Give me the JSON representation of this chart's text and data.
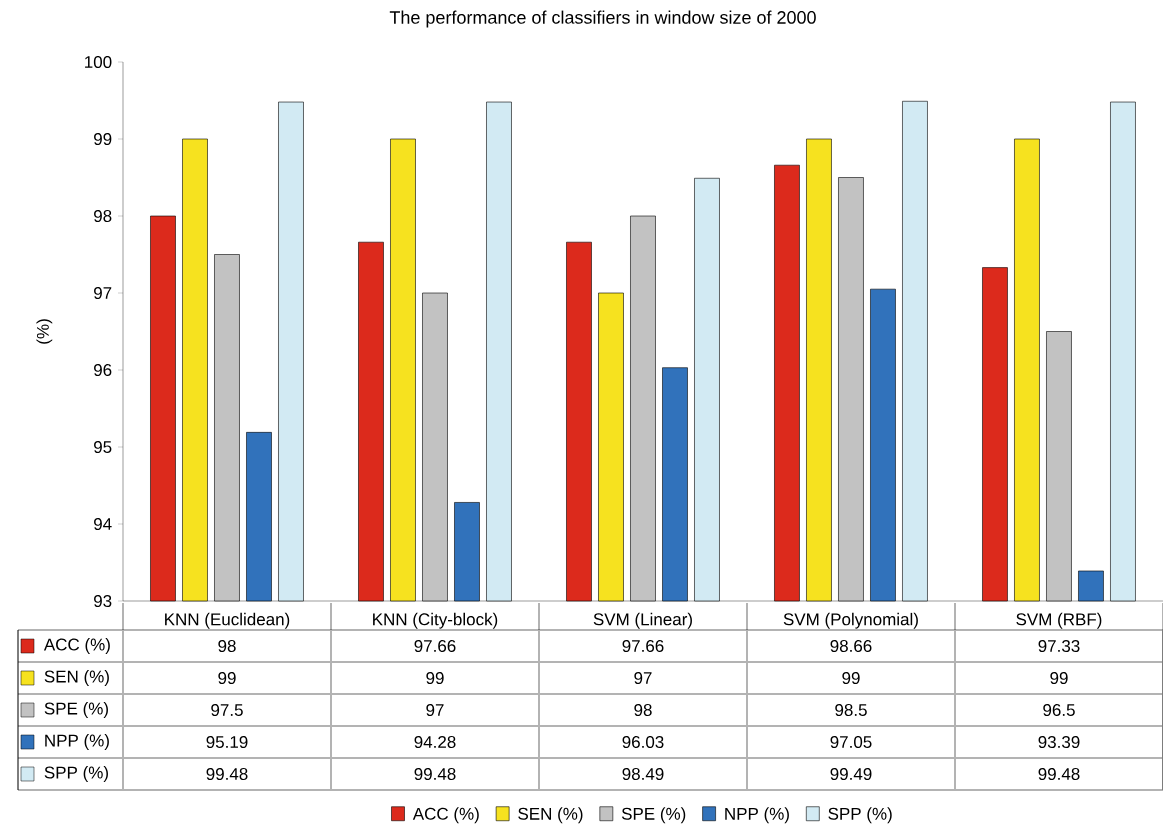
{
  "chart_data": {
    "type": "bar",
    "title": "The performance of classifiers in window size of 2000",
    "ylabel": "(%)",
    "categories": [
      "KNN (Euclidean)",
      "KNN (City-block)",
      "SVM (Linear)",
      "SVM (Polynomial)",
      "SVM (RBF)"
    ],
    "series": [
      {
        "name": "ACC (%)",
        "color": "#dc2a1c",
        "values": [
          98,
          97.66,
          97.66,
          98.66,
          97.33
        ]
      },
      {
        "name": "SEN (%)",
        "color": "#f6e21f",
        "values": [
          99,
          99,
          97,
          99,
          99
        ]
      },
      {
        "name": "SPE (%)",
        "color": "#c2c2c2",
        "values": [
          97.5,
          97,
          98,
          98.5,
          96.5
        ]
      },
      {
        "name": "NPP (%)",
        "color": "#3172bb",
        "values": [
          95.19,
          94.28,
          96.03,
          97.05,
          93.39
        ]
      },
      {
        "name": "SPP (%)",
        "color": "#d2eaf3",
        "values": [
          99.48,
          99.48,
          98.49,
          99.49,
          99.48
        ]
      }
    ],
    "ylim": [
      93,
      100
    ],
    "yticks": [
      93,
      94,
      95,
      96,
      97,
      98,
      99,
      100
    ],
    "data_labels": true,
    "legend": "bottom"
  }
}
